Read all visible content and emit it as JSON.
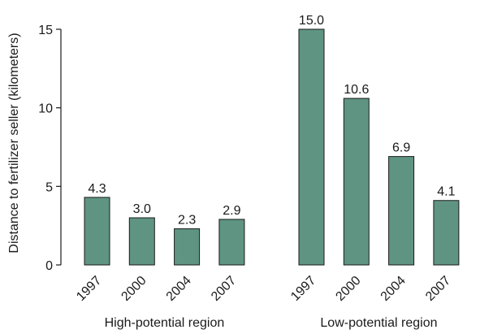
{
  "chart_data": {
    "type": "bar",
    "ylabel": "Distance to fertilizer seller (kilometers)",
    "ylim": [
      0,
      15
    ],
    "yticks": [
      0,
      5,
      10,
      15
    ],
    "bar_color": "#5f9482",
    "bar_outline": "#1a1a1a",
    "groups": [
      {
        "label": "High-potential region",
        "categories": [
          "1997",
          "2000",
          "2004",
          "2007"
        ],
        "values": [
          4.3,
          3.0,
          2.3,
          2.9
        ],
        "data_labels": [
          "4.3",
          "3.0",
          "2.3",
          "2.9"
        ]
      },
      {
        "label": "Low-potential region",
        "categories": [
          "1997",
          "2000",
          "2004",
          "2007"
        ],
        "values": [
          15.0,
          10.6,
          6.9,
          4.1
        ],
        "data_labels": [
          "15.0",
          "10.6",
          "6.9",
          "4.1"
        ]
      }
    ],
    "grid": false,
    "legend": "none"
  }
}
